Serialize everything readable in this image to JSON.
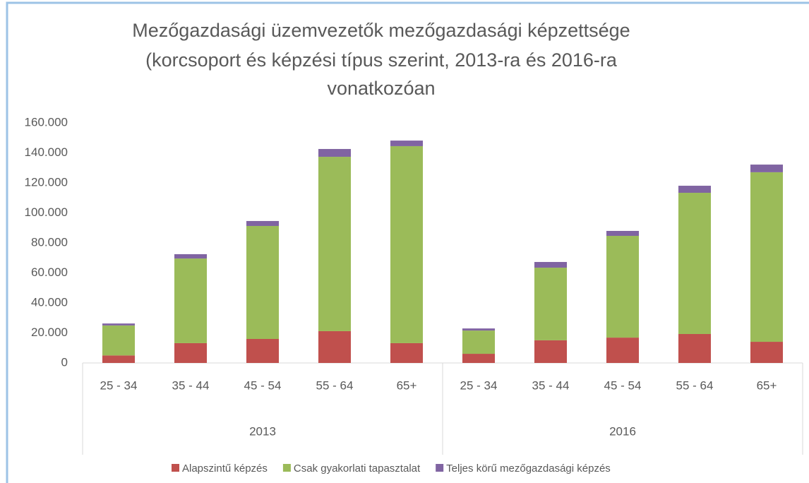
{
  "chart_data": {
    "type": "stacked_bar",
    "title": [
      "Mezőgazdasági üzemvezetők mezőgazdasági képzettsége",
      "(korcsoport és képzési típus szerint, 2013-ra és 2016-ra",
      "vonatkozóan"
    ],
    "categories": [
      "25 - 34",
      "35 - 44",
      "45 - 54",
      "55 - 64",
      "65+",
      "25 - 34",
      "35 - 44",
      "45 - 54",
      "55 - 64",
      "65+"
    ],
    "group_labels": [
      "2013",
      "2016"
    ],
    "series": [
      {
        "name": "Alapszintű képzés",
        "color": "#c0504d",
        "values": [
          5000,
          13200,
          16000,
          21200,
          13200,
          6100,
          15100,
          16900,
          19300,
          14100
        ]
      },
      {
        "name": "Csak gyakorlati tapasztalat",
        "color": "#9bbb59",
        "values": [
          20000,
          56400,
          75300,
          116200,
          131300,
          15500,
          48400,
          67800,
          94100,
          113000
        ]
      },
      {
        "name": "Teljes körű mezőgazdasági képzés",
        "color": "#8064a2",
        "values": [
          1300,
          2900,
          3300,
          5200,
          3700,
          1400,
          3800,
          3300,
          4700,
          5100
        ]
      }
    ],
    "ylim": [
      0,
      160000
    ],
    "yticks": [
      0,
      {
        "value": 20000,
        "label": "20.000"
      },
      {
        "value": 40000,
        "label": "40.000"
      },
      {
        "value": 60000,
        "label": "60.000"
      },
      {
        "value": 80000,
        "label": "80.000"
      },
      {
        "value": 100000,
        "label": "100.000"
      },
      {
        "value": 120000,
        "label": "120.000"
      },
      {
        "value": 140000,
        "label": "140.000"
      },
      {
        "value": 160000,
        "label": "160.000"
      }
    ],
    "grid": false,
    "legend": "bottom"
  }
}
